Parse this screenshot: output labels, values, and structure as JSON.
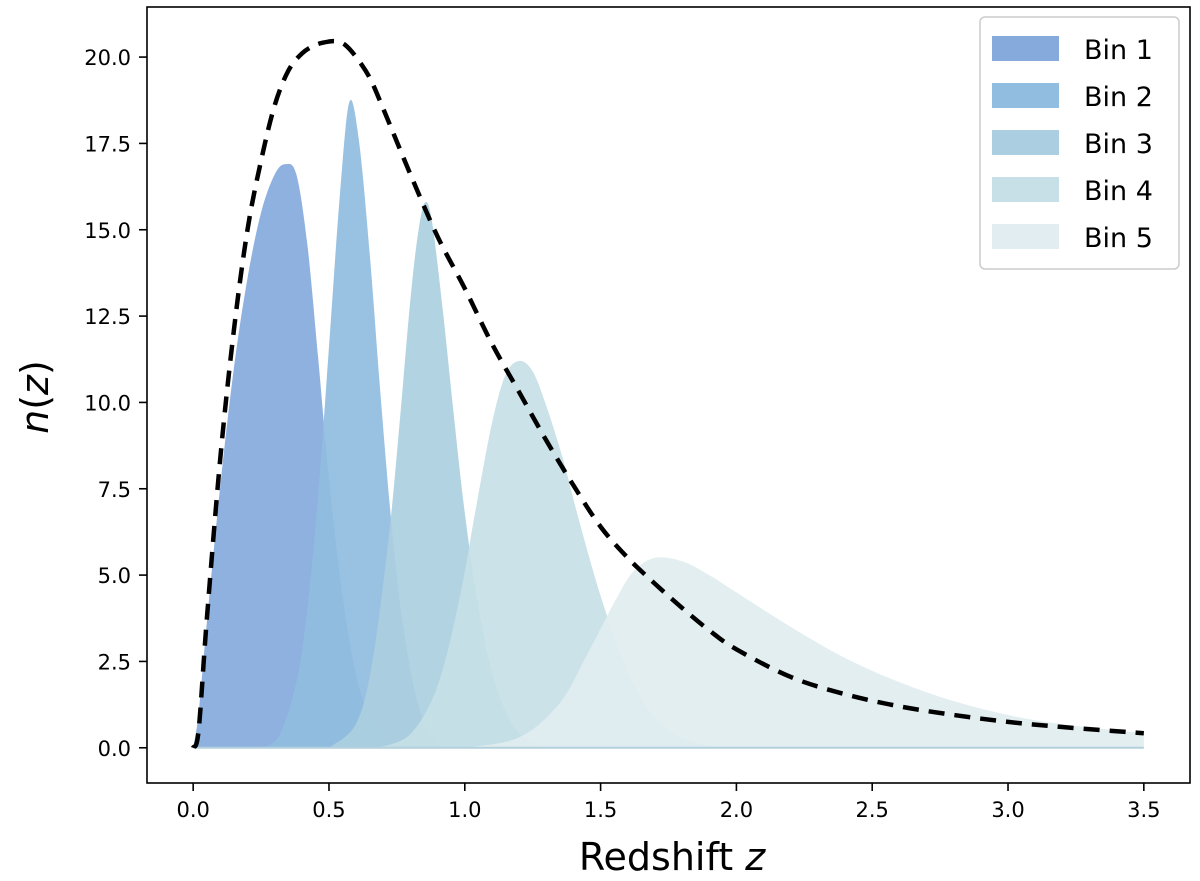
{
  "chart_data": {
    "type": "area",
    "xlabel": "Redshift",
    "xlabel_var": "z",
    "ylabel_var": "n",
    "ylabel_paren_open": "(",
    "ylabel_arg": "z",
    "ylabel_paren_close": ")",
    "xlim": [
      -0.17,
      3.67
    ],
    "ylim": [
      -1.02,
      21.45
    ],
    "x_ticks": [
      0.0,
      0.5,
      1.0,
      1.5,
      2.0,
      2.5,
      3.0,
      3.5
    ],
    "x_tick_labels": [
      "0.0",
      "0.5",
      "1.0",
      "1.5",
      "2.0",
      "2.5",
      "3.0",
      "3.5"
    ],
    "y_ticks": [
      0.0,
      2.5,
      5.0,
      7.5,
      10.0,
      12.5,
      15.0,
      17.5,
      20.0
    ],
    "y_tick_labels": [
      "0.0",
      "2.5",
      "5.0",
      "7.5",
      "10.0",
      "12.5",
      "15.0",
      "17.5",
      "20.0"
    ],
    "grid": false,
    "legend_position": "top-right",
    "series": [
      {
        "name": "Bin 1",
        "color": "#86aadc",
        "peak_z": 0.34,
        "peak_n": 16.9,
        "z_range": [
          0.0,
          0.82
        ],
        "z": [
          0.0,
          0.02,
          0.05,
          0.1,
          0.15,
          0.2,
          0.25,
          0.3,
          0.34,
          0.38,
          0.42,
          0.46,
          0.5,
          0.55,
          0.6,
          0.65,
          0.7,
          0.75,
          0.82
        ],
        "n": [
          0.0,
          1.0,
          3.6,
          7.6,
          11.0,
          13.6,
          15.5,
          16.6,
          16.9,
          16.6,
          14.6,
          11.3,
          7.8,
          4.4,
          2.1,
          0.9,
          0.35,
          0.12,
          0.0
        ]
      },
      {
        "name": "Bin 2",
        "color": "#90bde0",
        "peak_z": 0.575,
        "peak_n": 18.7,
        "z_range": [
          0.26,
          0.92
        ],
        "z": [
          0.26,
          0.32,
          0.38,
          0.42,
          0.46,
          0.5,
          0.54,
          0.575,
          0.61,
          0.65,
          0.69,
          0.73,
          0.77,
          0.82,
          0.87,
          0.92
        ],
        "n": [
          0.0,
          0.4,
          1.9,
          4.0,
          7.3,
          11.6,
          16.0,
          18.7,
          17.6,
          14.3,
          10.2,
          6.5,
          3.7,
          1.5,
          0.45,
          0.0
        ]
      },
      {
        "name": "Bin 3",
        "color": "#abcfe0",
        "peak_z": 0.855,
        "peak_n": 15.8,
        "z_range": [
          0.5,
          1.3
        ],
        "z": [
          0.5,
          0.6,
          0.66,
          0.72,
          0.76,
          0.8,
          0.83,
          0.855,
          0.88,
          0.92,
          0.96,
          1.0,
          1.05,
          1.1,
          1.16,
          1.22,
          1.3
        ],
        "n": [
          0.0,
          0.7,
          2.5,
          6.1,
          9.4,
          13.0,
          15.0,
          15.8,
          15.2,
          12.6,
          9.6,
          6.8,
          4.1,
          2.2,
          0.9,
          0.3,
          0.0
        ]
      },
      {
        "name": "Bin 4",
        "color": "#c7dfe6",
        "peak_z": 1.2,
        "peak_n": 11.2,
        "z_range": [
          0.68,
          1.95
        ],
        "z": [
          0.68,
          0.8,
          0.9,
          0.98,
          1.04,
          1.1,
          1.15,
          1.2,
          1.25,
          1.3,
          1.36,
          1.42,
          1.5,
          1.58,
          1.66,
          1.75,
          1.85,
          1.95
        ],
        "n": [
          0.0,
          0.4,
          1.8,
          4.3,
          6.9,
          9.4,
          10.8,
          11.2,
          10.9,
          9.9,
          8.4,
          6.6,
          4.4,
          2.6,
          1.3,
          0.5,
          0.15,
          0.0
        ]
      },
      {
        "name": "Bin 5",
        "color": "#e1edf0",
        "peak_z": 1.7,
        "peak_n": 5.5,
        "z_range": [
          1.0,
          3.5
        ],
        "z": [
          1.0,
          1.2,
          1.35,
          1.45,
          1.55,
          1.62,
          1.7,
          1.8,
          1.9,
          2.0,
          2.2,
          2.4,
          2.6,
          2.8,
          3.0,
          3.2,
          3.5
        ],
        "n": [
          0.0,
          0.3,
          1.3,
          2.7,
          4.2,
          5.1,
          5.5,
          5.4,
          5.0,
          4.5,
          3.5,
          2.6,
          1.9,
          1.35,
          0.95,
          0.68,
          0.42
        ]
      }
    ],
    "total": {
      "style": "dashed",
      "color": "#000000",
      "z": [
        0.0,
        0.02,
        0.05,
        0.1,
        0.15,
        0.2,
        0.25,
        0.3,
        0.35,
        0.4,
        0.45,
        0.5,
        0.53,
        0.56,
        0.6,
        0.65,
        0.7,
        0.8,
        0.9,
        1.0,
        1.1,
        1.2,
        1.3,
        1.4,
        1.5,
        1.6,
        1.7,
        1.8,
        1.9,
        2.0,
        2.2,
        2.4,
        2.6,
        2.8,
        3.0,
        3.2,
        3.5
      ],
      "n": [
        0.0,
        0.5,
        3.7,
        8.4,
        12.1,
        15.0,
        17.0,
        18.6,
        19.6,
        20.1,
        20.35,
        20.45,
        20.45,
        20.35,
        20.0,
        19.4,
        18.5,
        16.6,
        14.8,
        13.3,
        11.7,
        10.3,
        8.9,
        7.6,
        6.4,
        5.5,
        4.75,
        4.05,
        3.4,
        2.85,
        2.05,
        1.55,
        1.2,
        0.95,
        0.75,
        0.6,
        0.42
      ]
    }
  }
}
